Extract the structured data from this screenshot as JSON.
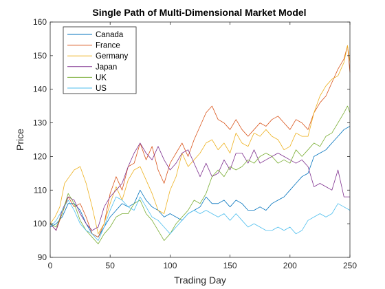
{
  "chart_data": {
    "type": "line",
    "title": "Single Path of Multi-Dimensional Market Model",
    "xlabel": "Trading Day",
    "ylabel": "Price",
    "xlim": [
      0,
      250
    ],
    "ylim": [
      90,
      160
    ],
    "xticks": [
      0,
      50,
      100,
      150,
      200,
      250
    ],
    "yticks": [
      90,
      100,
      110,
      120,
      130,
      140,
      150,
      160
    ],
    "grid": false,
    "legend_position": "top-left",
    "series": [
      {
        "name": "Canada",
        "color": "#0072BD",
        "points": [
          [
            0,
            99
          ],
          [
            5,
            100
          ],
          [
            10,
            102
          ],
          [
            15,
            106
          ],
          [
            20,
            106
          ],
          [
            25,
            104
          ],
          [
            30,
            100
          ],
          [
            35,
            97
          ],
          [
            40,
            96
          ],
          [
            45,
            99
          ],
          [
            50,
            102
          ],
          [
            55,
            104
          ],
          [
            60,
            106
          ],
          [
            65,
            105
          ],
          [
            70,
            106
          ],
          [
            75,
            110
          ],
          [
            80,
            107
          ],
          [
            85,
            105
          ],
          [
            90,
            104
          ],
          [
            95,
            102
          ],
          [
            100,
            103
          ],
          [
            105,
            102
          ],
          [
            110,
            101
          ],
          [
            115,
            103
          ],
          [
            120,
            104
          ],
          [
            125,
            105
          ],
          [
            130,
            108
          ],
          [
            135,
            106
          ],
          [
            140,
            106
          ],
          [
            145,
            107
          ],
          [
            150,
            105
          ],
          [
            155,
            107
          ],
          [
            160,
            106
          ],
          [
            165,
            104
          ],
          [
            170,
            104
          ],
          [
            175,
            105
          ],
          [
            180,
            104
          ],
          [
            185,
            106
          ],
          [
            190,
            107
          ],
          [
            195,
            108
          ],
          [
            200,
            110
          ],
          [
            205,
            112
          ],
          [
            210,
            114
          ],
          [
            215,
            115
          ],
          [
            220,
            120
          ],
          [
            225,
            121
          ],
          [
            230,
            122
          ],
          [
            235,
            124
          ],
          [
            240,
            126
          ],
          [
            245,
            128
          ],
          [
            250,
            129
          ]
        ]
      },
      {
        "name": "France",
        "color": "#D95319",
        "points": [
          [
            0,
            100
          ],
          [
            5,
            98
          ],
          [
            10,
            103
          ],
          [
            15,
            108
          ],
          [
            20,
            105
          ],
          [
            25,
            106
          ],
          [
            30,
            102
          ],
          [
            35,
            97
          ],
          [
            40,
            96
          ],
          [
            45,
            100
          ],
          [
            50,
            109
          ],
          [
            55,
            114
          ],
          [
            60,
            110
          ],
          [
            65,
            117
          ],
          [
            70,
            118
          ],
          [
            75,
            124
          ],
          [
            80,
            119
          ],
          [
            85,
            123
          ],
          [
            90,
            116
          ],
          [
            95,
            112
          ],
          [
            100,
            118
          ],
          [
            105,
            121
          ],
          [
            110,
            124
          ],
          [
            115,
            120
          ],
          [
            120,
            125
          ],
          [
            125,
            129
          ],
          [
            130,
            133
          ],
          [
            135,
            135
          ],
          [
            140,
            131
          ],
          [
            145,
            130
          ],
          [
            150,
            128
          ],
          [
            155,
            131
          ],
          [
            160,
            128
          ],
          [
            165,
            126
          ],
          [
            170,
            128
          ],
          [
            175,
            130
          ],
          [
            180,
            129
          ],
          [
            185,
            131
          ],
          [
            190,
            132
          ],
          [
            195,
            130
          ],
          [
            200,
            128
          ],
          [
            205,
            131
          ],
          [
            210,
            130
          ],
          [
            215,
            128
          ],
          [
            220,
            133
          ],
          [
            225,
            136
          ],
          [
            230,
            138
          ],
          [
            235,
            142
          ],
          [
            240,
            146
          ],
          [
            245,
            149
          ],
          [
            248,
            153
          ],
          [
            250,
            145
          ]
        ]
      },
      {
        "name": "Germany",
        "color": "#EDB120",
        "points": [
          [
            0,
            100
          ],
          [
            4,
            102
          ],
          [
            8,
            105
          ],
          [
            12,
            112
          ],
          [
            16,
            114
          ],
          [
            20,
            116
          ],
          [
            25,
            117
          ],
          [
            30,
            112
          ],
          [
            35,
            105
          ],
          [
            40,
            97
          ],
          [
            45,
            100
          ],
          [
            50,
            106
          ],
          [
            55,
            111
          ],
          [
            60,
            107
          ],
          [
            65,
            113
          ],
          [
            70,
            116
          ],
          [
            75,
            117
          ],
          [
            80,
            113
          ],
          [
            85,
            109
          ],
          [
            90,
            104
          ],
          [
            95,
            103
          ],
          [
            100,
            110
          ],
          [
            105,
            114
          ],
          [
            110,
            121
          ],
          [
            115,
            117
          ],
          [
            120,
            119
          ],
          [
            125,
            121
          ],
          [
            130,
            124
          ],
          [
            135,
            125
          ],
          [
            140,
            122
          ],
          [
            145,
            124
          ],
          [
            150,
            121
          ],
          [
            155,
            127
          ],
          [
            160,
            124
          ],
          [
            165,
            123
          ],
          [
            170,
            127
          ],
          [
            175,
            126
          ],
          [
            180,
            128
          ],
          [
            185,
            126
          ],
          [
            190,
            125
          ],
          [
            195,
            122
          ],
          [
            200,
            123
          ],
          [
            205,
            127
          ],
          [
            210,
            126
          ],
          [
            215,
            126
          ],
          [
            220,
            133
          ],
          [
            225,
            138
          ],
          [
            230,
            141
          ],
          [
            235,
            143
          ],
          [
            240,
            144
          ],
          [
            245,
            148
          ],
          [
            248,
            153
          ],
          [
            250,
            148
          ]
        ]
      },
      {
        "name": "Japan",
        "color": "#7E2F8E",
        "points": [
          [
            0,
            100
          ],
          [
            5,
            98
          ],
          [
            10,
            104
          ],
          [
            15,
            108
          ],
          [
            20,
            107
          ],
          [
            25,
            103
          ],
          [
            30,
            100
          ],
          [
            35,
            98
          ],
          [
            40,
            99
          ],
          [
            45,
            105
          ],
          [
            50,
            108
          ],
          [
            55,
            110
          ],
          [
            60,
            112
          ],
          [
            65,
            117
          ],
          [
            70,
            121
          ],
          [
            75,
            124
          ],
          [
            80,
            121
          ],
          [
            85,
            119
          ],
          [
            90,
            123
          ],
          [
            95,
            119
          ],
          [
            100,
            116
          ],
          [
            105,
            118
          ],
          [
            110,
            121
          ],
          [
            115,
            122
          ],
          [
            120,
            118
          ],
          [
            125,
            114
          ],
          [
            130,
            118
          ],
          [
            135,
            114
          ],
          [
            140,
            115
          ],
          [
            145,
            119
          ],
          [
            150,
            116
          ],
          [
            155,
            121
          ],
          [
            160,
            121
          ],
          [
            165,
            118
          ],
          [
            170,
            122
          ],
          [
            175,
            118
          ],
          [
            180,
            119
          ],
          [
            185,
            120
          ],
          [
            190,
            121
          ],
          [
            195,
            120
          ],
          [
            200,
            119
          ],
          [
            205,
            118
          ],
          [
            210,
            119
          ],
          [
            215,
            117
          ],
          [
            220,
            111
          ],
          [
            225,
            112
          ],
          [
            230,
            111
          ],
          [
            235,
            110
          ],
          [
            240,
            116
          ],
          [
            245,
            108
          ],
          [
            250,
            108
          ]
        ]
      },
      {
        "name": "UK",
        "color": "#77AC30",
        "points": [
          [
            0,
            100
          ],
          [
            5,
            99
          ],
          [
            10,
            103
          ],
          [
            15,
            109
          ],
          [
            20,
            106
          ],
          [
            25,
            101
          ],
          [
            30,
            98
          ],
          [
            35,
            96
          ],
          [
            40,
            94
          ],
          [
            45,
            97
          ],
          [
            50,
            99
          ],
          [
            55,
            102
          ],
          [
            60,
            103
          ],
          [
            65,
            103
          ],
          [
            70,
            106
          ],
          [
            75,
            107
          ],
          [
            80,
            103
          ],
          [
            85,
            101
          ],
          [
            90,
            98
          ],
          [
            95,
            95
          ],
          [
            100,
            97
          ],
          [
            105,
            100
          ],
          [
            110,
            102
          ],
          [
            115,
            104
          ],
          [
            120,
            107
          ],
          [
            125,
            106
          ],
          [
            130,
            109
          ],
          [
            135,
            114
          ],
          [
            140,
            116
          ],
          [
            145,
            114
          ],
          [
            150,
            117
          ],
          [
            155,
            116
          ],
          [
            160,
            117
          ],
          [
            165,
            119
          ],
          [
            170,
            118
          ],
          [
            175,
            120
          ],
          [
            180,
            121
          ],
          [
            185,
            120
          ],
          [
            190,
            118
          ],
          [
            195,
            119
          ],
          [
            200,
            118
          ],
          [
            205,
            122
          ],
          [
            210,
            120
          ],
          [
            215,
            122
          ],
          [
            220,
            124
          ],
          [
            225,
            123
          ],
          [
            230,
            126
          ],
          [
            235,
            127
          ],
          [
            240,
            130
          ],
          [
            245,
            133
          ],
          [
            248,
            135
          ],
          [
            250,
            133
          ]
        ]
      },
      {
        "name": "US",
        "color": "#4DBEEE",
        "points": [
          [
            0,
            99
          ],
          [
            5,
            101
          ],
          [
            10,
            104
          ],
          [
            15,
            107
          ],
          [
            20,
            104
          ],
          [
            25,
            100
          ],
          [
            30,
            98
          ],
          [
            35,
            97
          ],
          [
            40,
            95
          ],
          [
            45,
            99
          ],
          [
            50,
            104
          ],
          [
            55,
            108
          ],
          [
            60,
            107
          ],
          [
            65,
            105
          ],
          [
            70,
            104
          ],
          [
            75,
            108
          ],
          [
            80,
            105
          ],
          [
            85,
            102
          ],
          [
            90,
            101
          ],
          [
            95,
            99
          ],
          [
            100,
            97
          ],
          [
            105,
            99
          ],
          [
            110,
            101
          ],
          [
            115,
            103
          ],
          [
            120,
            104
          ],
          [
            125,
            103
          ],
          [
            130,
            104
          ],
          [
            135,
            103
          ],
          [
            140,
            102
          ],
          [
            145,
            103
          ],
          [
            150,
            101
          ],
          [
            155,
            103
          ],
          [
            160,
            101
          ],
          [
            165,
            99
          ],
          [
            170,
            100
          ],
          [
            175,
            99
          ],
          [
            180,
            98
          ],
          [
            185,
            98
          ],
          [
            190,
            99
          ],
          [
            195,
            98
          ],
          [
            200,
            99
          ],
          [
            205,
            97
          ],
          [
            210,
            98
          ],
          [
            215,
            101
          ],
          [
            220,
            102
          ],
          [
            225,
            103
          ],
          [
            230,
            102
          ],
          [
            235,
            103
          ],
          [
            240,
            106
          ],
          [
            245,
            105
          ],
          [
            250,
            104
          ]
        ]
      }
    ]
  }
}
